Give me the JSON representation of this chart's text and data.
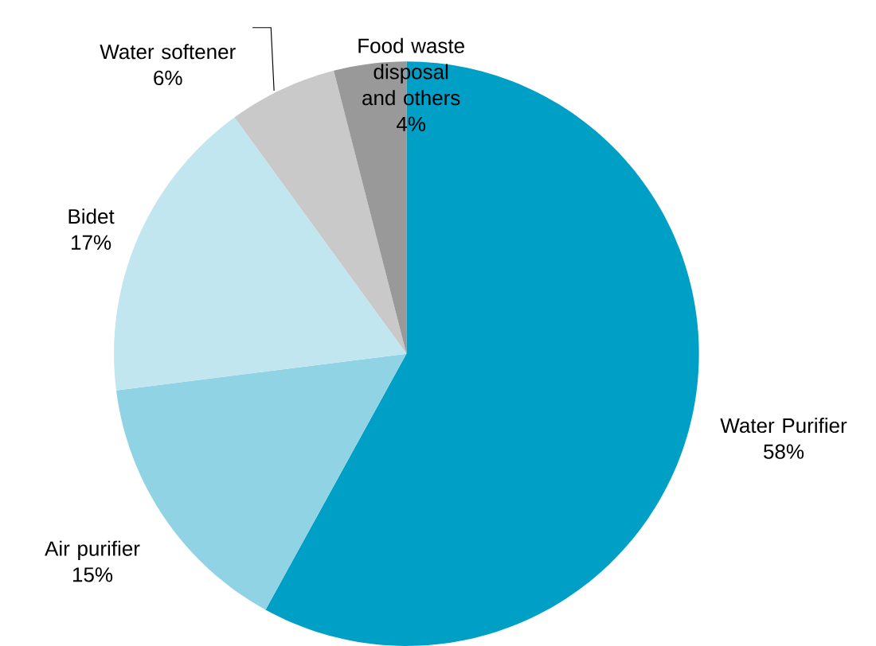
{
  "chart_data": {
    "type": "pie",
    "categories": [
      "Water Purifier",
      "Air purifier",
      "Bidet",
      "Water softener",
      "Food waste disposal and others"
    ],
    "values": [
      58,
      15,
      17,
      6,
      4
    ],
    "value_labels": [
      "58%",
      "15%",
      "17%",
      "6%",
      "4%"
    ],
    "colors": [
      "#00a0c6",
      "#8fd3e4",
      "#c1e6f0",
      "#c9c9c9",
      "#999999"
    ]
  }
}
